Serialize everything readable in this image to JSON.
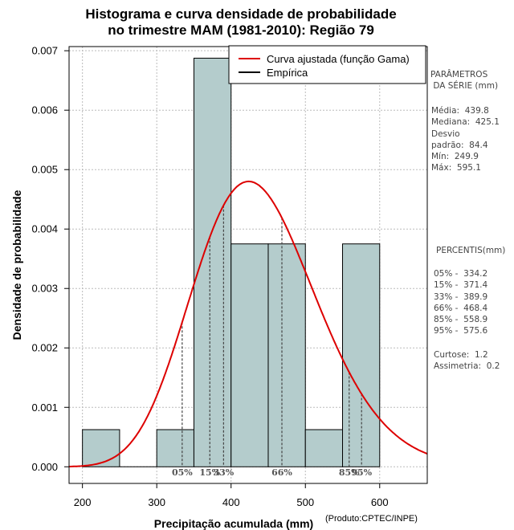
{
  "chart_data": {
    "type": "histogram",
    "title_line1": "Histograma e curva densidade de probabilidade",
    "title_line2": "no trimestre MAM (1981-2010): Região 79",
    "xlabel": "Precipitação acumulada (mm)",
    "ylabel": "Densidade de probabilidade",
    "xlim": [
      182,
      664
    ],
    "ylim": [
      -0.00028,
      0.00707
    ],
    "x_ticks": [
      200,
      300,
      400,
      500,
      600
    ],
    "y_ticks": [
      0.0,
      0.001,
      0.002,
      0.003,
      0.004,
      0.005,
      0.006,
      0.007
    ],
    "y_tick_labels": [
      "0.000",
      "0.001",
      "0.002",
      "0.003",
      "0.004",
      "0.005",
      "0.006",
      "0.007"
    ],
    "bins": [
      {
        "from": 200,
        "to": 250,
        "density": 0.000625
      },
      {
        "from": 250,
        "to": 300,
        "density": 0.0
      },
      {
        "from": 300,
        "to": 350,
        "density": 0.000625
      },
      {
        "from": 350,
        "to": 400,
        "density": 0.006875
      },
      {
        "from": 400,
        "to": 450,
        "density": 0.00375
      },
      {
        "from": 450,
        "to": 500,
        "density": 0.00375
      },
      {
        "from": 500,
        "to": 550,
        "density": 0.000625
      },
      {
        "from": 550,
        "to": 600,
        "density": 0.00375
      }
    ],
    "gamma_fit": {
      "mean": 439.8,
      "sd": 84.4,
      "color": "#dd0000"
    },
    "percentile_markers": [
      {
        "label": "05%",
        "value": 334.2
      },
      {
        "label": "15%",
        "value": 371.4
      },
      {
        "label": "33%",
        "value": 389.9
      },
      {
        "label": "66%",
        "value": 468.4
      },
      {
        "label": "85%",
        "value": 558.9
      },
      {
        "label": "95%",
        "value": 575.6
      }
    ],
    "legend": [
      {
        "label": "Curva ajustada (função Gama)",
        "color": "#dd0000"
      },
      {
        "label": "Empírica",
        "color": "#000000"
      }
    ],
    "bar_color": "#b4cccc"
  },
  "side_panel": {
    "params_title": "PARÂMETROS\n DA SÉRIE (mm)",
    "params": "Média:  439.8\nMediana:  425.1\nDesvio\npadrão:  84.4\nMín:  249.9\nMáx:  595.1",
    "percentis_title": "PERCENTIS(mm)",
    "percentis": "05% -  334.2\n15% -  371.4\n33% -  389.9\n66% -  468.4\n85% -  558.9\n95% -  575.6",
    "stats": "Curtose:  1.2\nAssimetria:  0.2"
  },
  "credit": "(Produto:CPTEC/INPE)"
}
